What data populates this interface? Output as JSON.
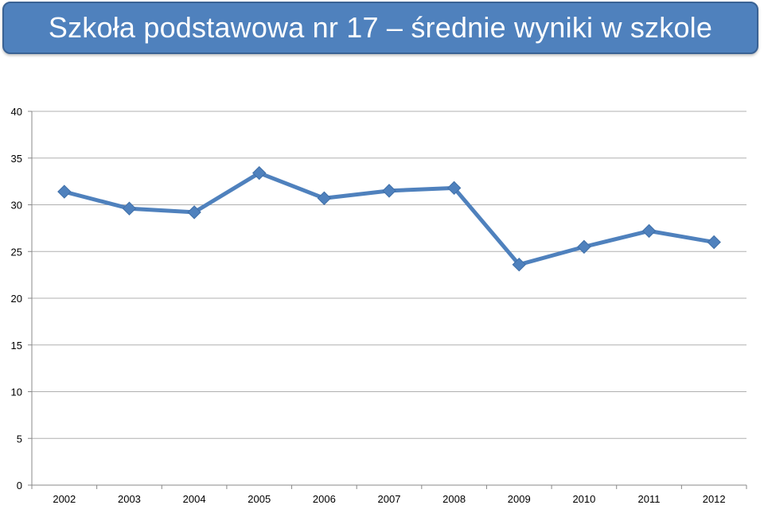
{
  "chart_data": {
    "type": "line",
    "title": "Szkoła podstawowa nr 17 – średnie wyniki w szkole",
    "categories": [
      "2002",
      "2003",
      "2004",
      "2005",
      "2006",
      "2007",
      "2008",
      "2009",
      "2010",
      "2011",
      "2012"
    ],
    "series": [
      {
        "values": [
          31.4,
          29.6,
          29.2,
          33.4,
          30.7,
          31.5,
          31.8,
          23.6,
          25.5,
          27.2,
          26.0
        ]
      }
    ],
    "ylim": [
      0,
      40
    ],
    "yticks": [
      "0",
      "5",
      "10",
      "15",
      "20",
      "25",
      "30",
      "35",
      "40"
    ],
    "grid": true,
    "legend": "none",
    "colors": {
      "line": "#4f81bd",
      "banner": "#4f81bd",
      "grid": "#b0b0b0"
    }
  }
}
